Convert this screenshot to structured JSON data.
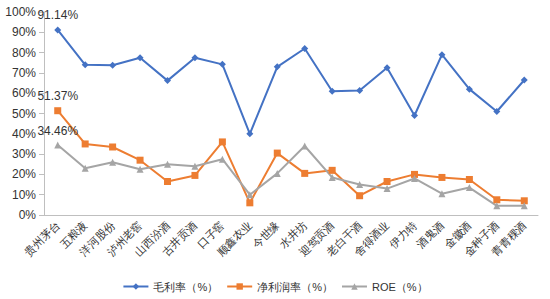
{
  "chart_data": {
    "type": "line",
    "categories": [
      "贵州茅台",
      "五粮液",
      "洋河股份",
      "泸州老窖",
      "山西汾酒",
      "古井贡酒",
      "口子窖",
      "顺鑫农业",
      "今世缘",
      "水井坊",
      "迎驾贡酒",
      "老白干酒",
      "舍得酒业",
      "伊力特",
      "酒鬼酒",
      "金徽酒",
      "金种子酒",
      "青青稞酒"
    ],
    "series": [
      {
        "name": "毛利率（%）",
        "color": "#4472c4",
        "marker": "diamond",
        "values": [
          91.14,
          74,
          73.8,
          77.5,
          66.2,
          77.5,
          74.2,
          40,
          73,
          82,
          61,
          61.3,
          72.5,
          49,
          79,
          62,
          51,
          66.5
        ],
        "value_labels": [
          "91.14%",
          null,
          null,
          null,
          null,
          null,
          null,
          null,
          null,
          null,
          null,
          null,
          null,
          null,
          null,
          null,
          null,
          null
        ]
      },
      {
        "name": "净利润率（%）",
        "color": "#ed7d31",
        "marker": "square",
        "values": [
          51.37,
          35,
          33.5,
          27,
          16.5,
          19.5,
          36,
          6,
          30.5,
          20.5,
          22,
          9.5,
          16.5,
          20,
          18.5,
          17.5,
          7.5,
          7
        ],
        "value_labels": [
          "51.37%",
          null,
          null,
          null,
          null,
          null,
          null,
          null,
          null,
          null,
          null,
          null,
          null,
          null,
          null,
          null,
          null,
          null
        ]
      },
      {
        "name": "ROE（%）",
        "color": "#a5a5a5",
        "marker": "triangle",
        "values": [
          34.46,
          23,
          26,
          22.5,
          25,
          24,
          27.5,
          10,
          20.5,
          34,
          18.5,
          15,
          13,
          18,
          10.5,
          13.5,
          4.5,
          4.5
        ],
        "value_labels": [
          "34.46%",
          null,
          null,
          null,
          null,
          null,
          null,
          null,
          null,
          null,
          null,
          null,
          null,
          null,
          null,
          null,
          null,
          null
        ]
      }
    ],
    "ylim": [
      0,
      100
    ],
    "yticks": [
      {
        "value": 0,
        "label": "0%"
      },
      {
        "value": 10,
        "label": "10%"
      },
      {
        "value": 20,
        "label": "20%"
      },
      {
        "value": 30,
        "label": "30%"
      },
      {
        "value": 40,
        "label": "40%"
      },
      {
        "value": 50,
        "label": "50%"
      },
      {
        "value": 60,
        "label": "60%"
      },
      {
        "value": 70,
        "label": "70%"
      },
      {
        "value": 80,
        "label": "80%"
      },
      {
        "value": 90,
        "label": "90%"
      },
      {
        "value": 100,
        "label": "100%"
      }
    ],
    "grid": false,
    "legend": "bottom"
  }
}
